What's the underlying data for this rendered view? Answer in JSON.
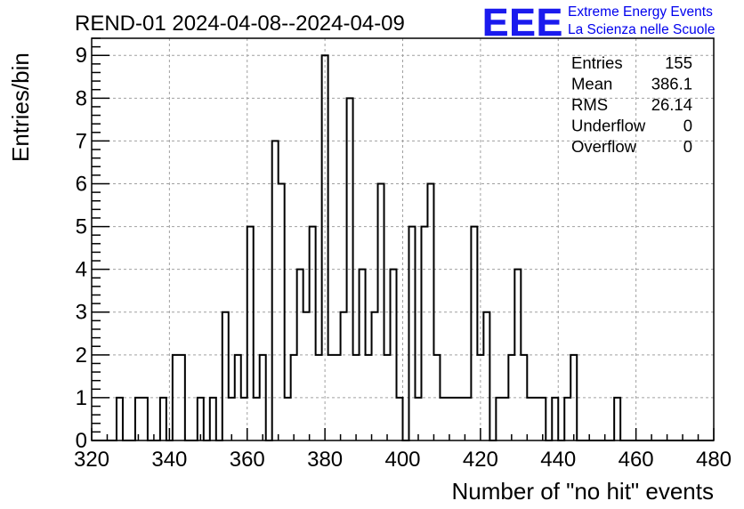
{
  "chart_data": {
    "type": "histogram",
    "title": "REND-01 2024-04-08--2024-04-09",
    "xlabel": "Number of \"no hit\" events",
    "ylabel": "Entries/bin",
    "xlim": [
      320,
      480
    ],
    "ylim": [
      0,
      9.4
    ],
    "x_ticks": [
      320,
      340,
      360,
      380,
      400,
      420,
      440,
      460,
      480
    ],
    "y_ticks": [
      0,
      1,
      2,
      3,
      4,
      5,
      6,
      7,
      8,
      9
    ],
    "grid": true,
    "bin_start": 320,
    "bin_width": 1.6,
    "counts": [
      0,
      0,
      0,
      0,
      1,
      0,
      0,
      1,
      1,
      0,
      0,
      1,
      0,
      2,
      2,
      0,
      0,
      1,
      0,
      1,
      0,
      3,
      1,
      2,
      1,
      5,
      1,
      2,
      0,
      7,
      6,
      1,
      2,
      4,
      3,
      5,
      2,
      9,
      2,
      2,
      3,
      8,
      2,
      4,
      2,
      3,
      6,
      2,
      4,
      1,
      0,
      5,
      1,
      5,
      6,
      2,
      1,
      1,
      1,
      1,
      1,
      5,
      2,
      3,
      0,
      1,
      1,
      2,
      4,
      2,
      1,
      1,
      1,
      0,
      1,
      0,
      1,
      2,
      0,
      0,
      0,
      0,
      0,
      0,
      1,
      0,
      0,
      0,
      0,
      0,
      0,
      0,
      0,
      0,
      0,
      0,
      0,
      0,
      0,
      0
    ],
    "stats": [
      {
        "label": "Entries",
        "value": "155"
      },
      {
        "label": "Mean",
        "value": "386.1"
      },
      {
        "label": "RMS",
        "value": "26.14"
      },
      {
        "label": "Underflow",
        "value": "0"
      },
      {
        "label": "Overflow",
        "value": "0"
      }
    ],
    "logo": {
      "text": "EEE",
      "line1": "Extreme Energy Events",
      "line2": "La Scienza nelle Scuole",
      "color": "#0000ee"
    }
  }
}
